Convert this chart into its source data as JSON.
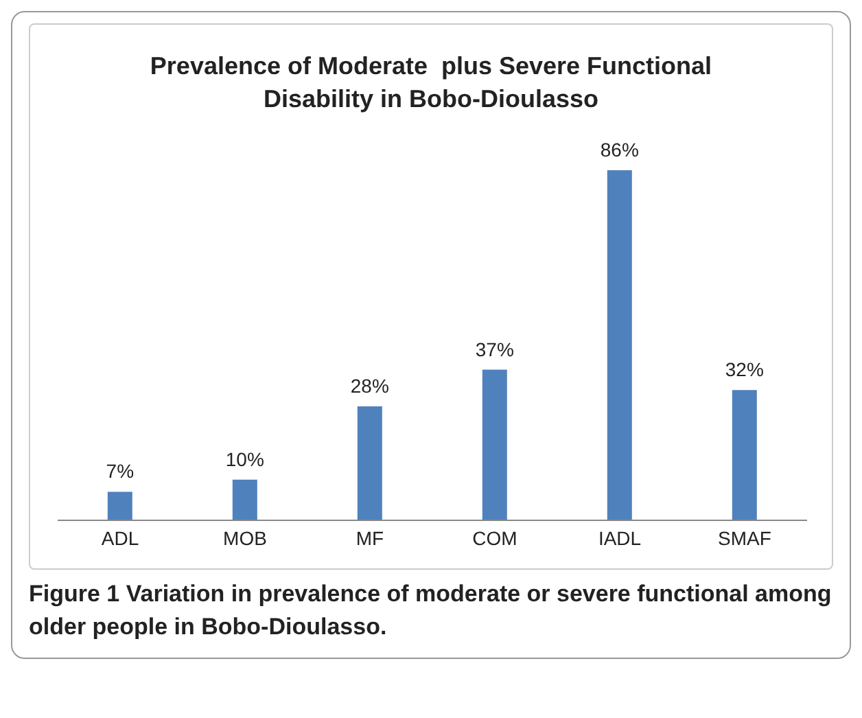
{
  "chart_data": {
    "type": "bar",
    "title": "Prevalence of Moderate  plus Severe Functional Disability in Bobo-Dioulasso",
    "categories": [
      "ADL",
      "MOB",
      "MF",
      "COM",
      "IADL",
      "SMAF"
    ],
    "values": [
      7,
      10,
      28,
      37,
      86,
      32
    ],
    "value_labels": [
      "7%",
      "10%",
      "28%",
      "37%",
      "86%",
      "32%"
    ],
    "color": "#4f81bd",
    "annotations": [
      "Figure 1 Variation in prevalence of moderate or severe functional among older people in Bobo-Dioulasso."
    ]
  }
}
